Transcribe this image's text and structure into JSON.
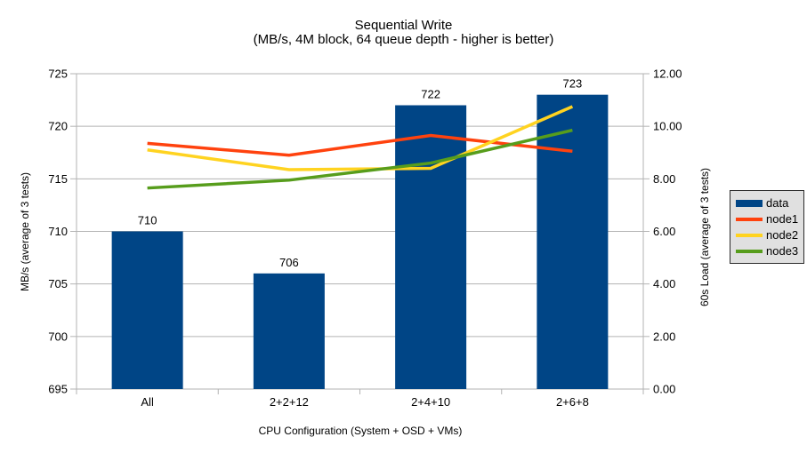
{
  "chart_data": {
    "type": "combo",
    "title": "Sequential Write",
    "subtitle": "(MB/s, 4M block, 64 queue depth - higher is better)",
    "categories": [
      "All",
      "2+2+12",
      "2+4+10",
      "2+6+8"
    ],
    "x_axis_label": "CPU Configuration (System + OSD + VMs)",
    "left_axis": {
      "label": "MB/s (average of 3 tests)",
      "min": 695,
      "max": 725,
      "step": 5,
      "decimals": 0
    },
    "right_axis": {
      "label": "60s Load (average of 3 tests)",
      "min": 0,
      "max": 12,
      "step": 2,
      "decimals": 2
    },
    "grid": true,
    "legend_position": "right",
    "series": [
      {
        "name": "data",
        "type": "bar",
        "axis": "left",
        "color": "#004586",
        "values": [
          710,
          706,
          722,
          723
        ],
        "labels": [
          "710",
          "706",
          "722",
          "723"
        ]
      },
      {
        "name": "node1",
        "type": "line",
        "axis": "right",
        "color": "#FF420E",
        "values": [
          9.35,
          8.9,
          9.65,
          9.05
        ]
      },
      {
        "name": "node2",
        "type": "line",
        "axis": "right",
        "color": "#FFD320",
        "values": [
          9.1,
          8.35,
          8.4,
          10.75
        ]
      },
      {
        "name": "node3",
        "type": "line",
        "axis": "right",
        "color": "#579D1C",
        "values": [
          7.65,
          7.95,
          8.6,
          9.85
        ]
      }
    ],
    "colors": {
      "background": "#ffffff",
      "gridline": "#b3b3b3",
      "axis": "#b3b3b3",
      "text": "#000000",
      "legend_bg": "#e0e0e0",
      "legend_border": "#2b2b2b"
    }
  }
}
